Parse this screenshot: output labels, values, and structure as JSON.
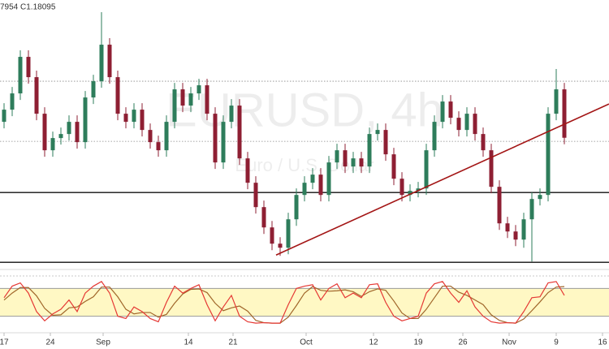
{
  "chart_data": {
    "type": "candlestick",
    "header": "7954 C1.18095",
    "watermark": "EURUSD, 4h",
    "watermark_subtitle": "Euro / U.S. Dollar",
    "up_color": "#2e7d5b",
    "down_color": "#8e1f33",
    "xlim": [
      -0.5,
      74.5
    ],
    "xticks": [
      {
        "value": 0,
        "label": "17"
      },
      {
        "value": 5.7,
        "label": "24"
      },
      {
        "value": 12.2,
        "label": "Sep"
      },
      {
        "value": 22.7,
        "label": "14"
      },
      {
        "value": 28.2,
        "label": "21"
      },
      {
        "value": 37.2,
        "label": "Oct"
      },
      {
        "value": 45.5,
        "label": "12"
      },
      {
        "value": 51,
        "label": "19"
      },
      {
        "value": 56.5,
        "label": "26"
      },
      {
        "value": 62.2,
        "label": "Nov"
      },
      {
        "value": 68,
        "label": "9"
      },
      {
        "value": 73.7,
        "label": "16"
      }
    ],
    "ylim": [
      1.16,
      1.203
    ],
    "open": [
      1.1835,
      1.18545,
      1.18805,
      1.1939,
      1.19065,
      1.1848,
      1.17895,
      1.1809,
      1.18155,
      1.1835,
      1.18025,
      1.1874,
      1.19,
      1.19585,
      1.19065,
      1.1848,
      1.1835,
      1.18545,
      1.1822,
      1.18025,
      1.17895,
      1.1835,
      1.1887,
      1.1861,
      1.18805,
      1.18935,
      1.1848,
      1.177,
      1.1835,
      1.1861,
      1.17765,
      1.17375,
      1.16985,
      1.1666,
      1.164,
      1.16335,
      1.1679,
      1.1718,
      1.17375,
      1.17505,
      1.1718,
      1.177,
      1.17895,
      1.17635,
      1.17765,
      1.17635,
      1.18155,
      1.1822,
      1.1783,
      1.1744,
      1.1718,
      1.17245,
      1.17284,
      1.17895,
      1.1835,
      1.18675,
      1.18415,
      1.1822,
      1.1848,
      1.18155,
      1.17895,
      1.1731,
      1.16725,
      1.16595,
      1.16465,
      1.1679,
      1.17115,
      1.1718,
      1.1848,
      1.1887
    ],
    "high": [
      1.18649,
      1.18909,
      1.19494,
      1.19494,
      1.19169,
      1.18584,
      1.18194,
      1.18259,
      1.18454,
      1.18454,
      1.18844,
      1.19104,
      1.20105,
      1.19689,
      1.19169,
      1.18584,
      1.18649,
      1.18649,
      1.18324,
      1.18129,
      1.18454,
      1.18974,
      1.18974,
      1.18909,
      1.19039,
      1.19039,
      1.18584,
      1.18454,
      1.18714,
      1.18714,
      1.17869,
      1.17479,
      1.17089,
      1.16764,
      1.16504,
      1.16894,
      1.17284,
      1.17479,
      1.17609,
      1.17609,
      1.17804,
      1.17999,
      1.17999,
      1.17869,
      1.17869,
      1.18259,
      1.18324,
      1.18324,
      1.17934,
      1.17544,
      1.17349,
      1.17388,
      1.17999,
      1.18454,
      1.18779,
      1.18779,
      1.18519,
      1.18584,
      1.18584,
      1.18259,
      1.17999,
      1.17414,
      1.16829,
      1.16699,
      1.16894,
      1.17219,
      1.17284,
      1.18584,
      1.19195,
      1.18974
    ],
    "low": [
      1.18246,
      1.18441,
      1.18701,
      1.18961,
      1.18376,
      1.17791,
      1.17791,
      1.17986,
      1.18051,
      1.17921,
      1.17921,
      1.18636,
      1.18896,
      1.18961,
      1.18376,
      1.18246,
      1.18246,
      1.18116,
      1.17921,
      1.17791,
      1.17791,
      1.18246,
      1.18506,
      1.18506,
      1.18701,
      1.18376,
      1.17596,
      1.17596,
      1.18246,
      1.17661,
      1.17271,
      1.16881,
      1.16556,
      1.16296,
      1.16205,
      1.16231,
      1.16686,
      1.17076,
      1.17271,
      1.17076,
      1.17076,
      1.17596,
      1.17531,
      1.17531,
      1.17531,
      1.17531,
      1.18051,
      1.17726,
      1.17336,
      1.17076,
      1.17076,
      1.17141,
      1.1718,
      1.17791,
      1.18246,
      1.18311,
      1.18116,
      1.18116,
      1.18051,
      1.17791,
      1.17206,
      1.16621,
      1.16491,
      1.16361,
      1.16335,
      1.16114,
      1.17011,
      1.17076,
      1.18376,
      1.17991
    ],
    "close": [
      1.18545,
      1.18805,
      1.1939,
      1.19065,
      1.1848,
      1.17895,
      1.1809,
      1.18155,
      1.1835,
      1.18025,
      1.1874,
      1.19,
      1.19585,
      1.19065,
      1.1848,
      1.1835,
      1.18545,
      1.1822,
      1.18025,
      1.17895,
      1.1835,
      1.1887,
      1.1861,
      1.18805,
      1.18935,
      1.1848,
      1.177,
      1.1835,
      1.1861,
      1.17765,
      1.17375,
      1.16985,
      1.1666,
      1.164,
      1.16335,
      1.1679,
      1.1718,
      1.17375,
      1.17505,
      1.1718,
      1.177,
      1.17895,
      1.17635,
      1.17765,
      1.17635,
      1.18155,
      1.1822,
      1.1783,
      1.1744,
      1.1718,
      1.17245,
      1.17284,
      1.17895,
      1.1835,
      1.18675,
      1.18415,
      1.1822,
      1.1848,
      1.18155,
      1.17895,
      1.1731,
      1.16725,
      1.16595,
      1.16465,
      1.1679,
      1.17115,
      1.1718,
      1.1848,
      1.1887,
      1.18095
    ],
    "levels": [
      {
        "value": 1.19,
        "style": "dotted",
        "color": "#8a8a8a"
      },
      {
        "value": 1.18038,
        "style": "dotted",
        "color": "#8a8a8a"
      },
      {
        "value": 1.17219,
        "style": "solid",
        "color": "#111111"
      },
      {
        "value": 1.16101,
        "style": "solid",
        "color": "#111111"
      }
    ],
    "trendline": {
      "x": [
        33.5,
        74.5
      ],
      "y": [
        1.16218,
        1.18636
      ],
      "color": "#a31515"
    },
    "oscillator": {
      "type": "line",
      "ylim": [
        0,
        100
      ],
      "bands": [
        20,
        80
      ],
      "band_color": "#fff8c4",
      "series": [
        {
          "color": "#e53935",
          "values": [
            60,
            85,
            92,
            70,
            30,
            10,
            25,
            35,
            55,
            30,
            70,
            85,
            95,
            70,
            20,
            15,
            40,
            30,
            15,
            8,
            50,
            85,
            70,
            80,
            88,
            45,
            10,
            40,
            65,
            20,
            8,
            5,
            6,
            5,
            5,
            45,
            80,
            85,
            88,
            55,
            80,
            90,
            60,
            70,
            60,
            88,
            90,
            50,
            20,
            10,
            15,
            20,
            70,
            90,
            95,
            70,
            50,
            75,
            40,
            20,
            8,
            5,
            6,
            5,
            30,
            60,
            62,
            92,
            95,
            65
          ]
        },
        {
          "color": "#a0662a",
          "values": [
            55,
            70,
            82,
            82,
            64,
            37,
            22,
            23,
            38,
            40,
            52,
            62,
            83,
            83,
            62,
            35,
            25,
            28,
            28,
            18,
            24,
            48,
            68,
            78,
            79,
            71,
            48,
            32,
            38,
            42,
            31,
            11,
            6,
            5,
            5,
            18,
            43,
            70,
            84,
            76,
            74,
            75,
            77,
            73,
            63,
            73,
            79,
            76,
            53,
            27,
            15,
            15,
            35,
            60,
            85,
            85,
            72,
            65,
            55,
            45,
            23,
            11,
            6,
            5,
            14,
            32,
            51,
            71,
            83,
            84
          ]
        }
      ]
    }
  }
}
